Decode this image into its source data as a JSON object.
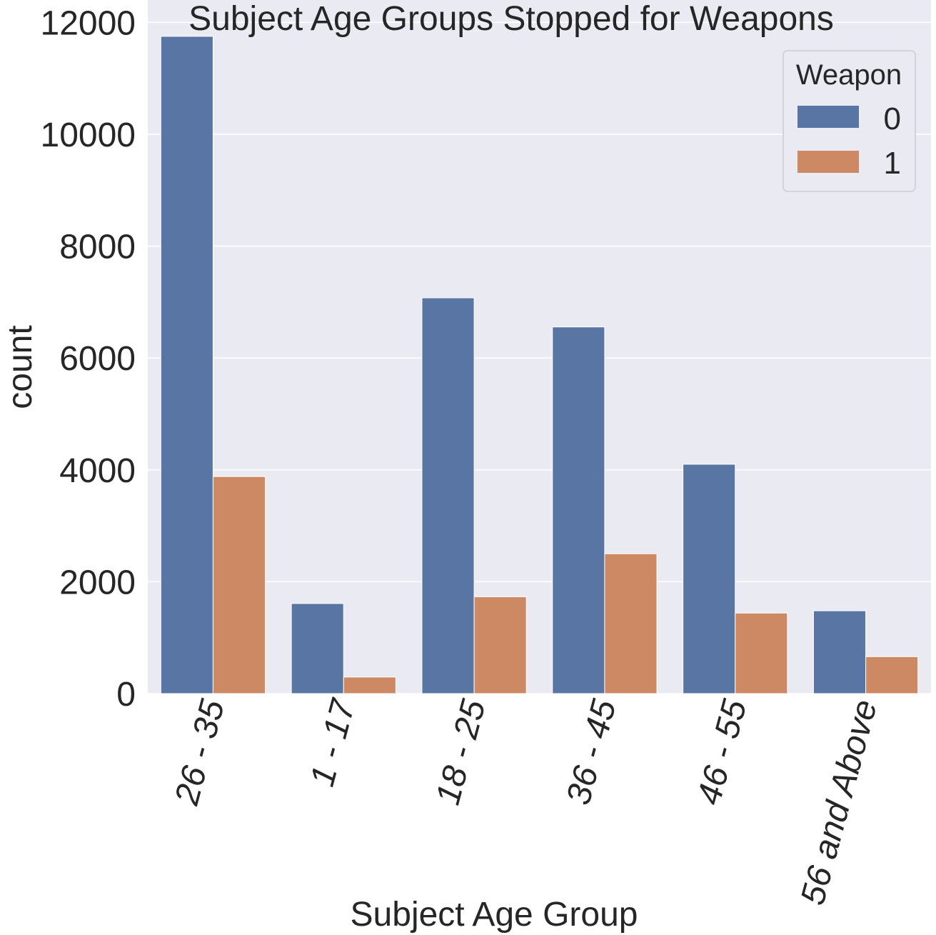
{
  "chart_data": {
    "type": "bar",
    "title": "Subject Age Groups Stopped for Weapons",
    "xlabel": "Subject Age Group",
    "ylabel": "count",
    "categories": [
      "26 - 35",
      "1 - 17",
      "18 - 25",
      "36 - 45",
      "46 - 55",
      "56 and Above"
    ],
    "series": [
      {
        "name": "0",
        "color": "#5875a4",
        "values": [
          11750,
          1610,
          7075,
          6555,
          4100,
          1480
        ]
      },
      {
        "name": "1",
        "color": "#cc8963",
        "values": [
          3880,
          295,
          1730,
          2500,
          1440,
          660
        ]
      }
    ],
    "ylim": [
      0,
      12400
    ],
    "yticks": [
      0,
      2000,
      4000,
      6000,
      8000,
      10000,
      12000
    ],
    "grid": true,
    "legend": {
      "title": "Weapon",
      "placement": "top-right"
    },
    "colors": {
      "plot_background": "#eaeaf2",
      "grid": "#ffffff"
    }
  }
}
